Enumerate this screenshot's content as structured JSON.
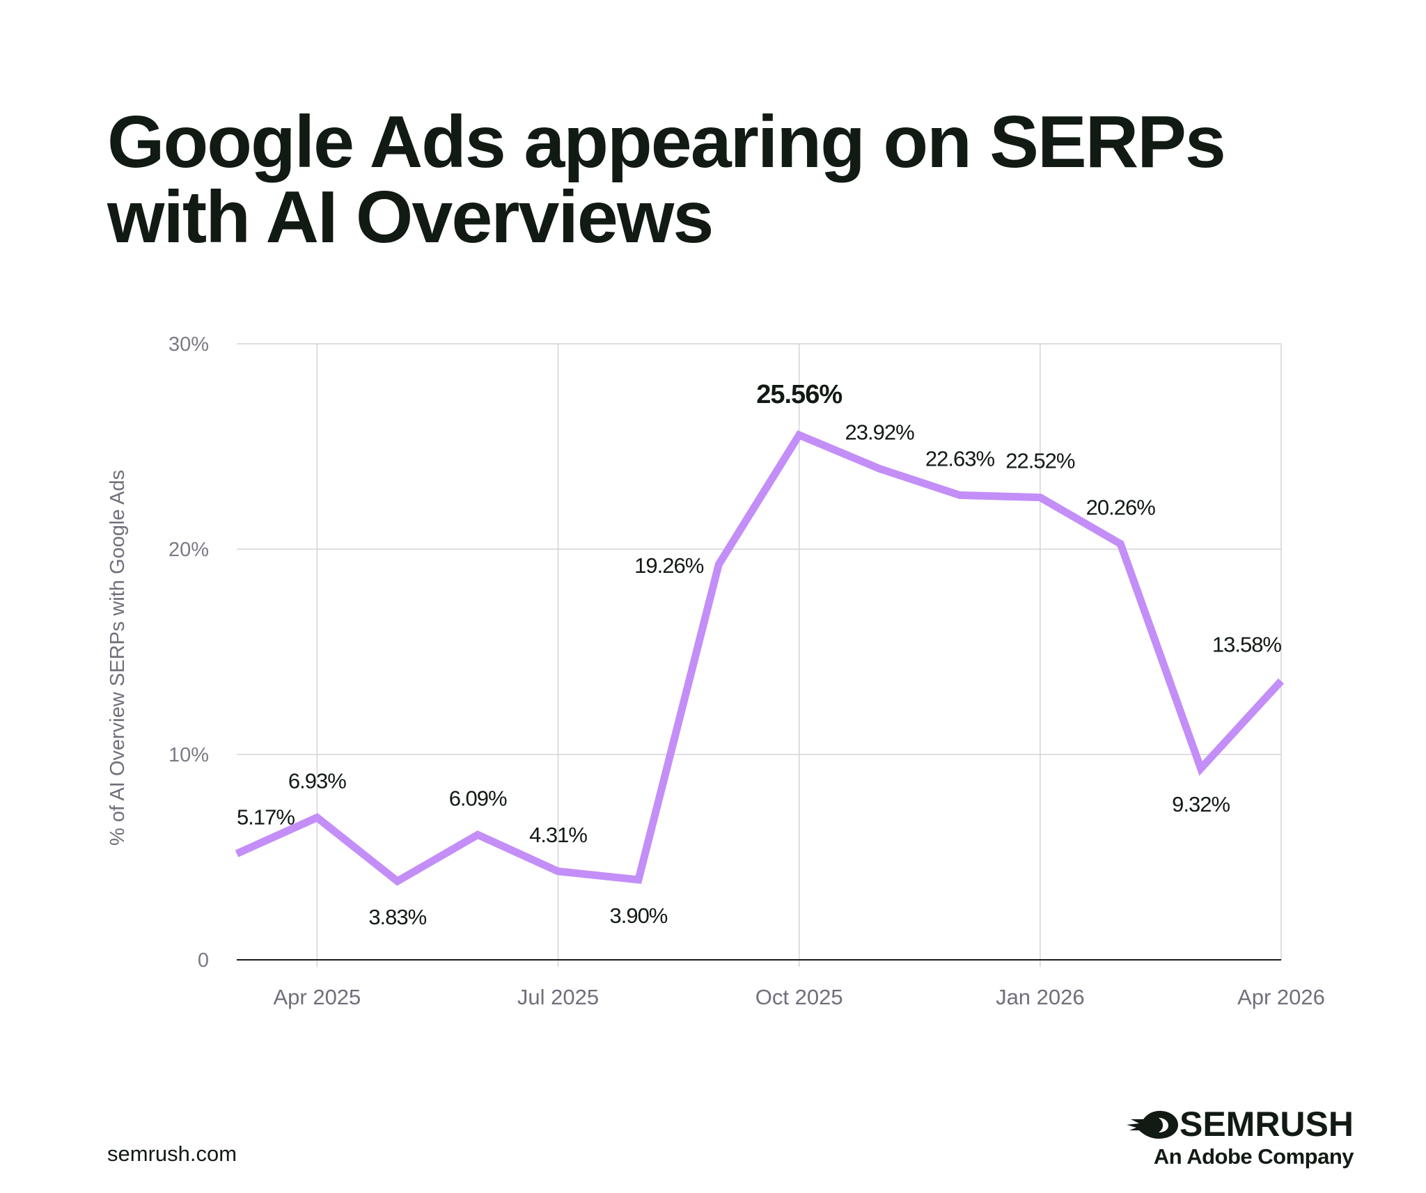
{
  "title_lines": [
    "Google Ads appearing on SERPs",
    "with AI Overviews"
  ],
  "chart_data": {
    "type": "line",
    "ylabel": "% of AI Overview SERPs with Google Ads",
    "xlabel": "",
    "ylim": [
      0,
      30
    ],
    "y_ticks": [
      {
        "value": 0,
        "label": "0"
      },
      {
        "value": 10,
        "label": "10%"
      },
      {
        "value": 20,
        "label": "20%"
      },
      {
        "value": 30,
        "label": "30%"
      }
    ],
    "x_ticks": [
      "Apr 2025",
      "Jul 2025",
      "Oct 2025",
      "Jan 2026",
      "Apr 2026"
    ],
    "x_range": [
      "2025-03",
      "2026-04"
    ],
    "grid": true,
    "series": [
      {
        "color": "#c38ef8",
        "points": [
          {
            "x": "2025-03",
            "y": 5.17,
            "label": "5.17%"
          },
          {
            "x": "2025-04",
            "y": 6.93,
            "label": "6.93%"
          },
          {
            "x": "2025-05",
            "y": 3.83,
            "label": "3.83%"
          },
          {
            "x": "2025-06",
            "y": 6.09,
            "label": "6.09%"
          },
          {
            "x": "2025-07",
            "y": 4.31,
            "label": "4.31%"
          },
          {
            "x": "2025-08",
            "y": 3.9,
            "label": "3.90%"
          },
          {
            "x": "2025-09",
            "y": 19.26,
            "label": "19.26%"
          },
          {
            "x": "2025-10",
            "y": 25.56,
            "label": "25.56%",
            "highlight": true
          },
          {
            "x": "2025-11",
            "y": 23.92,
            "label": "23.92%"
          },
          {
            "x": "2025-12",
            "y": 22.63,
            "label": "22.63%"
          },
          {
            "x": "2026-01",
            "y": 22.52,
            "label": "22.52%"
          },
          {
            "x": "2026-02",
            "y": 20.26,
            "label": "20.26%"
          },
          {
            "x": "2026-03",
            "y": 9.32,
            "label": "9.32%"
          },
          {
            "x": "2026-04",
            "y": 13.58,
            "label": "13.58%"
          }
        ]
      }
    ]
  },
  "footer": {
    "url": "semrush.com"
  },
  "brand": {
    "name": "SEMRUSH",
    "tagline": "An Adobe Company",
    "icon": "semrush-fireball-icon"
  }
}
